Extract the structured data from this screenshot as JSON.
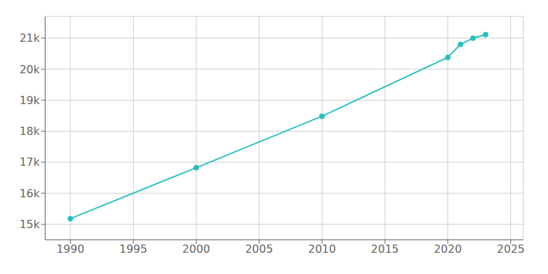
{
  "chart_data": {
    "type": "line",
    "x": [
      1990,
      2000,
      2010,
      2020,
      2021,
      2022,
      2023
    ],
    "values": [
      15181,
      16822,
      18482,
      20381,
      20798,
      21000,
      21114
    ],
    "color": "#2abfbf",
    "marker": "circle",
    "xlim": [
      1988,
      2026
    ],
    "ylim": [
      14500,
      21700
    ],
    "xticks": [
      1990,
      1995,
      2000,
      2005,
      2010,
      2015,
      2020,
      2025
    ],
    "yticks": [
      {
        "value": 15000,
        "label": "15k"
      },
      {
        "value": 16000,
        "label": "16k"
      },
      {
        "value": 17000,
        "label": "17k"
      },
      {
        "value": 18000,
        "label": "18k"
      },
      {
        "value": 19000,
        "label": "19k"
      },
      {
        "value": 20000,
        "label": "20k"
      },
      {
        "value": 21000,
        "label": "21k"
      }
    ],
    "grid": true
  }
}
